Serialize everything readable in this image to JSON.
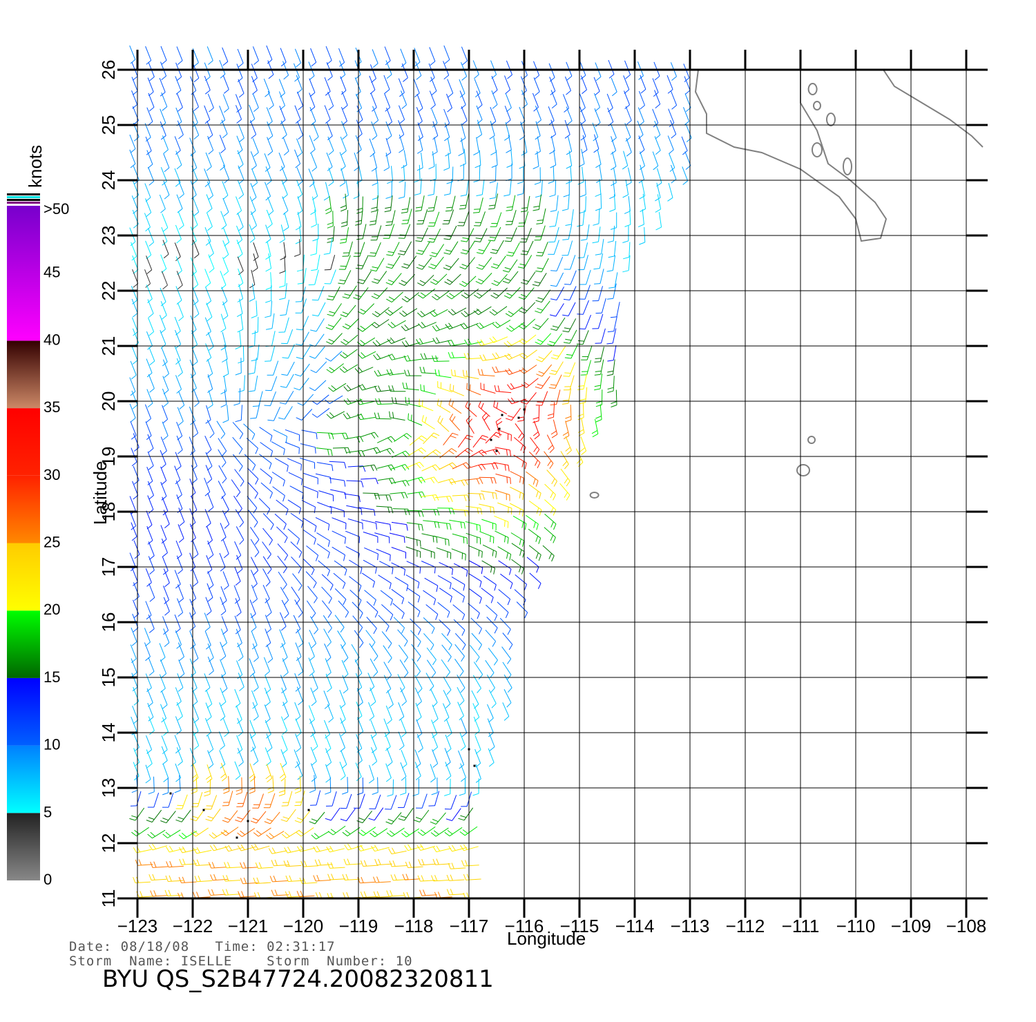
{
  "map": {
    "xlabel": "Longitude",
    "ylabel": "Latitude",
    "lon_range": [
      -123,
      -108
    ],
    "lat_range": [
      11,
      26
    ],
    "lon_ticks": [
      "−123",
      "−122",
      "−121",
      "−120",
      "−119",
      "−118",
      "−117",
      "−116",
      "−115",
      "−114",
      "−113",
      "−112",
      "−111",
      "−110",
      "−109",
      "−108"
    ],
    "lat_ticks": [
      "11",
      "12",
      "13",
      "14",
      "15",
      "16",
      "17",
      "18",
      "19",
      "20",
      "21",
      "22",
      "23",
      "24",
      "25",
      "26"
    ],
    "grid": true,
    "coastline_color": "#808080"
  },
  "colorbar": {
    "unit": "knots",
    "labels": [
      "0",
      "5",
      "10",
      "15",
      "20",
      "25",
      "30",
      "35",
      "40",
      "45",
      ">50"
    ],
    "segments": [
      {
        "min": 0,
        "max": 5,
        "from": "#888888",
        "to": "#222222"
      },
      {
        "min": 5,
        "max": 10,
        "from": "#00ffff",
        "to": "#0080ff"
      },
      {
        "min": 10,
        "max": 15,
        "from": "#0060ff",
        "to": "#0000ff"
      },
      {
        "min": 15,
        "max": 20,
        "from": "#006600",
        "to": "#00ff00"
      },
      {
        "min": 20,
        "max": 25,
        "from": "#ffff00",
        "to": "#ffcc00"
      },
      {
        "min": 25,
        "max": 30,
        "from": "#ff8800",
        "to": "#ff2200"
      },
      {
        "min": 30,
        "max": 35,
        "from": "#ff2200",
        "to": "#ff0000"
      },
      {
        "min": 35,
        "max": 40,
        "from": "#cc8866",
        "to": "#330000"
      },
      {
        "min": 40,
        "max": 50,
        "from": "#ff00ff",
        "to": "#7700cc"
      }
    ]
  },
  "chart_data": {
    "type": "wind-barb-map",
    "data_extent_note": "",
    "swath_east_edge": [
      [
        26,
        -113
      ],
      [
        24,
        -113
      ],
      [
        22,
        -114.3
      ],
      [
        21,
        -114.1
      ],
      [
        20,
        -114.2
      ],
      [
        19,
        -114.8
      ],
      [
        18,
        -115.2
      ],
      [
        17,
        -115.5
      ],
      [
        16,
        -116
      ],
      [
        15,
        -116
      ],
      [
        14,
        -116.3
      ],
      [
        13,
        -116.7
      ],
      [
        12,
        -117.0
      ],
      [
        11,
        -117
      ]
    ],
    "storm_center": {
      "lat": 19.6,
      "lon": -116.3,
      "max_knots": 30
    },
    "second_feature": {
      "lat": 12.5,
      "lon": -121,
      "max_knots": 28
    }
  },
  "info": {
    "date_line": "Date: 08/18/08   Time: 02:31:17",
    "storm_line": "Storm  Name: ISELLE    Storm  Number: 10",
    "product_id": "BYU  QS_S2B47724.20082320811"
  }
}
